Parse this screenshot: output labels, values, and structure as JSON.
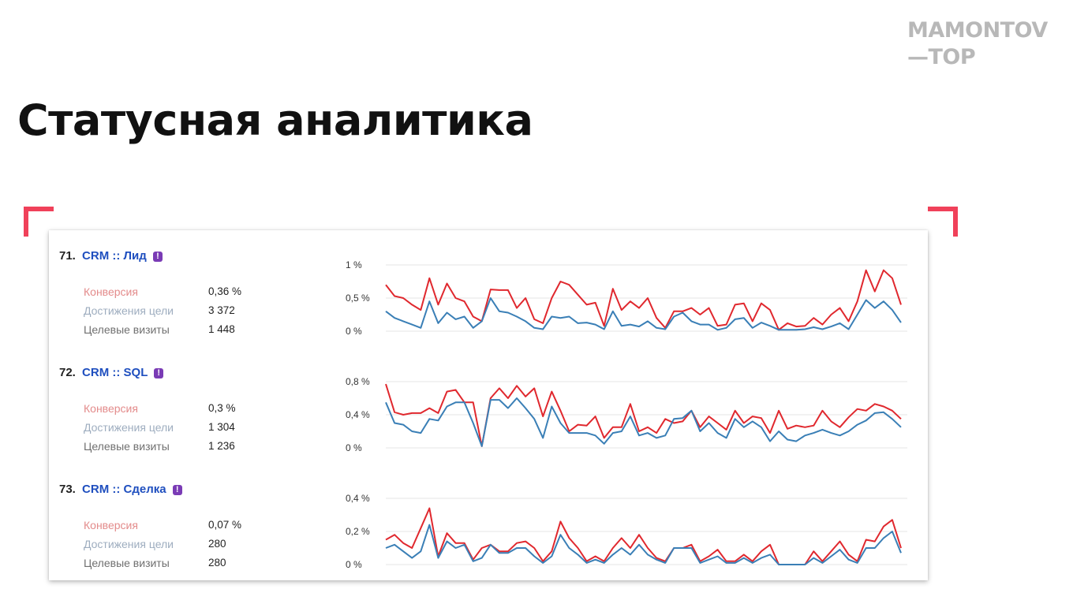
{
  "brand": {
    "line1": "MAMONTOV",
    "line2": "—TOP"
  },
  "page_title": "Статусная аналитика",
  "colors": {
    "conversion": "#e0282e",
    "visits": "#3a7fb6",
    "accent": "#f0415a",
    "link": "#1f4fbf",
    "badge": "#7a3bb5"
  },
  "goals": [
    {
      "number": "71.",
      "name": "CRM :: Лид",
      "badge_icon": "!",
      "metrics": [
        {
          "label": "Конверсия",
          "value": "0,36 %"
        },
        {
          "label": "Достижения цели",
          "value": "3 372"
        },
        {
          "label": "Целевые визиты",
          "value": "1 448"
        }
      ]
    },
    {
      "number": "72.",
      "name": "CRM :: SQL",
      "badge_icon": "!",
      "metrics": [
        {
          "label": "Конверсия",
          "value": "0,3 %"
        },
        {
          "label": "Достижения цели",
          "value": "1 304"
        },
        {
          "label": "Целевые визиты",
          "value": "1 236"
        }
      ]
    },
    {
      "number": "73.",
      "name": "CRM :: Сделка",
      "badge_icon": "!",
      "metrics": [
        {
          "label": "Конверсия",
          "value": "0,07 %"
        },
        {
          "label": "Достижения цели",
          "value": "280"
        },
        {
          "label": "Целевые визиты",
          "value": "280"
        }
      ]
    }
  ],
  "chart_data": [
    {
      "type": "line",
      "ylim": [
        0,
        1
      ],
      "y_ticks": [
        "0 %",
        "0,5 %",
        "1 %"
      ],
      "y_tick_values": [
        0,
        0.5,
        1
      ],
      "grid": true,
      "series": [
        {
          "color": "#e0282e",
          "values": [
            0.7,
            0.53,
            0.5,
            0.4,
            0.32,
            0.8,
            0.4,
            0.72,
            0.5,
            0.45,
            0.22,
            0.15,
            0.63,
            0.62,
            0.62,
            0.35,
            0.5,
            0.18,
            0.12,
            0.5,
            0.75,
            0.7,
            0.55,
            0.4,
            0.43,
            0.08,
            0.64,
            0.32,
            0.45,
            0.35,
            0.5,
            0.2,
            0.05,
            0.3,
            0.3,
            0.35,
            0.25,
            0.35,
            0.08,
            0.1,
            0.4,
            0.42,
            0.15,
            0.42,
            0.32,
            0.02,
            0.12,
            0.07,
            0.08,
            0.2,
            0.1,
            0.25,
            0.35,
            0.15,
            0.45,
            0.92,
            0.6,
            0.92,
            0.8,
            0.4
          ]
        },
        {
          "color": "#3a7fb6",
          "values": [
            0.3,
            0.2,
            0.15,
            0.1,
            0.05,
            0.45,
            0.12,
            0.28,
            0.18,
            0.22,
            0.05,
            0.15,
            0.5,
            0.3,
            0.28,
            0.22,
            0.15,
            0.05,
            0.03,
            0.22,
            0.2,
            0.22,
            0.12,
            0.13,
            0.1,
            0.03,
            0.3,
            0.08,
            0.1,
            0.07,
            0.15,
            0.05,
            0.03,
            0.22,
            0.28,
            0.15,
            0.1,
            0.1,
            0.02,
            0.05,
            0.18,
            0.2,
            0.05,
            0.13,
            0.08,
            0.02,
            0.02,
            0.02,
            0.03,
            0.06,
            0.03,
            0.07,
            0.12,
            0.03,
            0.25,
            0.47,
            0.35,
            0.45,
            0.32,
            0.13
          ]
        }
      ]
    },
    {
      "type": "line",
      "ylim": [
        0,
        0.8
      ],
      "y_ticks": [
        "0 %",
        "0,4 %",
        "0,8 %"
      ],
      "y_tick_values": [
        0,
        0.4,
        0.8
      ],
      "grid": true,
      "series": [
        {
          "color": "#e0282e",
          "values": [
            0.77,
            0.43,
            0.4,
            0.42,
            0.42,
            0.48,
            0.42,
            0.68,
            0.7,
            0.55,
            0.55,
            0.02,
            0.6,
            0.72,
            0.6,
            0.75,
            0.62,
            0.72,
            0.38,
            0.68,
            0.45,
            0.2,
            0.28,
            0.27,
            0.38,
            0.12,
            0.25,
            0.25,
            0.53,
            0.2,
            0.25,
            0.18,
            0.35,
            0.3,
            0.32,
            0.45,
            0.25,
            0.38,
            0.3,
            0.22,
            0.45,
            0.3,
            0.38,
            0.36,
            0.18,
            0.45,
            0.23,
            0.27,
            0.25,
            0.27,
            0.45,
            0.32,
            0.25,
            0.37,
            0.47,
            0.45,
            0.53,
            0.5,
            0.45,
            0.35
          ]
        },
        {
          "color": "#3a7fb6",
          "values": [
            0.55,
            0.3,
            0.28,
            0.2,
            0.18,
            0.35,
            0.33,
            0.5,
            0.55,
            0.55,
            0.3,
            0.02,
            0.58,
            0.58,
            0.48,
            0.6,
            0.48,
            0.35,
            0.12,
            0.5,
            0.3,
            0.18,
            0.18,
            0.18,
            0.15,
            0.05,
            0.18,
            0.2,
            0.38,
            0.15,
            0.18,
            0.12,
            0.15,
            0.35,
            0.36,
            0.45,
            0.2,
            0.3,
            0.18,
            0.12,
            0.35,
            0.25,
            0.32,
            0.25,
            0.08,
            0.2,
            0.1,
            0.08,
            0.15,
            0.18,
            0.22,
            0.18,
            0.15,
            0.2,
            0.28,
            0.33,
            0.42,
            0.43,
            0.35,
            0.25
          ]
        }
      ]
    },
    {
      "type": "line",
      "ylim": [
        0,
        0.4
      ],
      "y_ticks": [
        "0 %",
        "0,2 %",
        "0,4 %"
      ],
      "y_tick_values": [
        0,
        0.2,
        0.4
      ],
      "grid": true,
      "series": [
        {
          "color": "#e0282e",
          "values": [
            0.15,
            0.18,
            0.13,
            0.1,
            0.22,
            0.34,
            0.05,
            0.19,
            0.13,
            0.13,
            0.03,
            0.1,
            0.12,
            0.08,
            0.08,
            0.13,
            0.14,
            0.1,
            0.02,
            0.08,
            0.26,
            0.16,
            0.1,
            0.02,
            0.05,
            0.02,
            0.1,
            0.16,
            0.1,
            0.18,
            0.1,
            0.04,
            0.02,
            0.1,
            0.1,
            0.12,
            0.02,
            0.05,
            0.09,
            0.02,
            0.02,
            0.06,
            0.02,
            0.08,
            0.12,
            0.0,
            0.0,
            0.0,
            0.0,
            0.08,
            0.02,
            0.08,
            0.14,
            0.06,
            0.02,
            0.15,
            0.14,
            0.23,
            0.27,
            0.1
          ]
        },
        {
          "color": "#3a7fb6",
          "values": [
            0.1,
            0.12,
            0.08,
            0.04,
            0.08,
            0.24,
            0.04,
            0.14,
            0.1,
            0.12,
            0.02,
            0.04,
            0.12,
            0.07,
            0.07,
            0.1,
            0.1,
            0.05,
            0.01,
            0.05,
            0.18,
            0.1,
            0.06,
            0.01,
            0.03,
            0.01,
            0.06,
            0.1,
            0.06,
            0.12,
            0.06,
            0.03,
            0.01,
            0.1,
            0.1,
            0.1,
            0.01,
            0.03,
            0.05,
            0.01,
            0.01,
            0.04,
            0.01,
            0.04,
            0.06,
            0.0,
            0.0,
            0.0,
            0.0,
            0.04,
            0.01,
            0.05,
            0.09,
            0.03,
            0.01,
            0.1,
            0.1,
            0.16,
            0.2,
            0.07
          ]
        }
      ]
    }
  ]
}
